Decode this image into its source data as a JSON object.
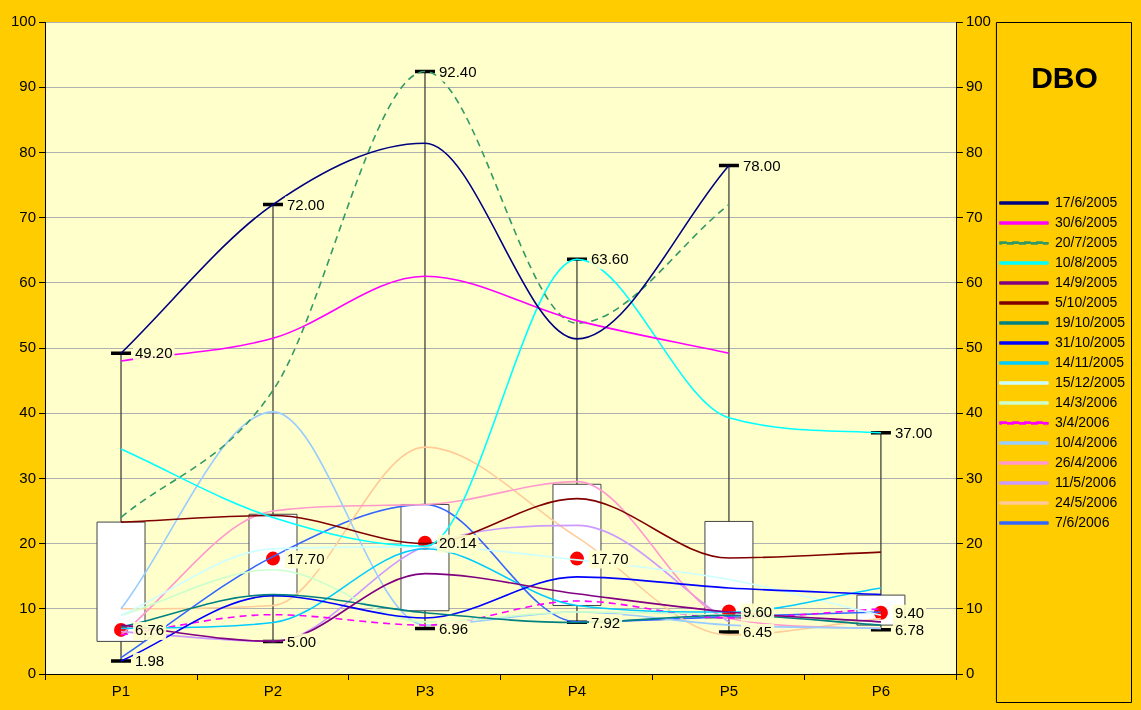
{
  "chart_data": {
    "type": "line",
    "title": "DBO",
    "categories": [
      "P1",
      "P2",
      "P3",
      "P4",
      "P5",
      "P6"
    ],
    "ylim": [
      0,
      100
    ],
    "yticks": [
      0,
      10,
      20,
      30,
      40,
      50,
      60,
      70,
      80,
      90,
      100
    ],
    "y2lim": [
      0,
      100
    ],
    "y2ticks": [
      0,
      10,
      20,
      30,
      40,
      50,
      60,
      70,
      80,
      90,
      100
    ],
    "grid": "y",
    "legend": "right",
    "marker": "none",
    "line_style": "solid",
    "annotations": [
      {
        "text": "49.20",
        "x": "P1",
        "y": 49.2
      },
      {
        "text": "1.98",
        "x": "P1",
        "y": 1.98
      },
      {
        "text": "6.76",
        "x": "P1",
        "y": 6.76
      },
      {
        "text": "72.00",
        "x": "P2",
        "y": 72
      },
      {
        "text": "5.00",
        "x": "P2",
        "y": 5
      },
      {
        "text": "17.70",
        "x": "P2",
        "y": 17.7
      },
      {
        "text": "92.40",
        "x": "P3",
        "y": 92.4
      },
      {
        "text": "6.96",
        "x": "P3",
        "y": 6.96
      },
      {
        "text": "20.14",
        "x": "P3",
        "y": 20.14
      },
      {
        "text": "63.60",
        "x": "P4",
        "y": 63.6
      },
      {
        "text": "7.92",
        "x": "P4",
        "y": 7.92
      },
      {
        "text": "17.70",
        "x": "P4",
        "y": 17.7
      },
      {
        "text": "78.00",
        "x": "P5",
        "y": 78
      },
      {
        "text": "6.45",
        "x": "P5",
        "y": 6.45
      },
      {
        "text": "9.60",
        "x": "P5",
        "y": 9.6
      },
      {
        "text": "37.00",
        "x": "P6",
        "y": 37
      },
      {
        "text": "6.78",
        "x": "P6",
        "y": 6.78
      },
      {
        "text": "9.40",
        "x": "P6",
        "y": 9.4
      }
    ],
    "series": [
      {
        "type": "box",
        "color": "#ffffff",
        "boxes": [
          {
            "low": 1.98,
            "q1": 5.0,
            "median": 6.76,
            "q3": 23.3,
            "high": 49.2
          },
          {
            "low": 5.0,
            "q1": 12.0,
            "median": 17.7,
            "q3": 24.5,
            "high": 72.0
          },
          {
            "low": 6.96,
            "q1": 9.7,
            "median": 20.14,
            "q3": 26.0,
            "high": 92.4
          },
          {
            "low": 7.92,
            "q1": 10.5,
            "median": 17.7,
            "q3": 29.1,
            "high": 63.6
          },
          {
            "low": 6.45,
            "q1": 8.6,
            "median": 9.6,
            "q3": 23.4,
            "high": 78.0
          },
          {
            "low": 6.78,
            "q1": 7.5,
            "median": 9.4,
            "q3": 12.1,
            "high": 37.0
          }
        ]
      },
      {
        "name": "17/6/2005",
        "color": "#000080",
        "values": [
          49.2,
          72,
          81.4,
          51.4,
          78,
          null
        ]
      },
      {
        "name": "30/6/2005",
        "color": "#ff00ff",
        "values": [
          48,
          51.5,
          61,
          54.2,
          49.2,
          null
        ]
      },
      {
        "name": "20/7/2005",
        "color": "#339966",
        "line_style": "dashed",
        "values": [
          24,
          43.5,
          92.4,
          53.8,
          72,
          null
        ]
      },
      {
        "name": "10/8/2005",
        "color": "#00ffff",
        "values": [
          34.5,
          24,
          19.6,
          63.6,
          39.3,
          37
        ]
      },
      {
        "name": "14/9/2005",
        "color": "#800080",
        "values": [
          7.5,
          5,
          15.4,
          12.3,
          9.5,
          8
        ]
      },
      {
        "name": "5/10/2005",
        "color": "#800000",
        "values": [
          23.3,
          24.3,
          20,
          26.9,
          17.8,
          18.7
        ]
      },
      {
        "name": "19/10/2005",
        "color": "#008080",
        "values": [
          7.2,
          12.2,
          9.4,
          7.9,
          9,
          7.5
        ]
      },
      {
        "name": "31/10/2005",
        "color": "#0000ff",
        "values": [
          2,
          12,
          8.6,
          14.9,
          13.2,
          12.2
        ]
      },
      {
        "name": "14/11/2005",
        "color": "#00ccff",
        "values": [
          7,
          7.9,
          19.2,
          10.5,
          9.5,
          13.2
        ]
      },
      {
        "name": "15/12/2005",
        "color": "#ccffff",
        "values": [
          9,
          19.2,
          19.5,
          17.5,
          14.5,
          9
        ]
      },
      {
        "name": "14/3/2006",
        "color": "#ccffcc",
        "values": [
          9,
          16,
          8,
          9.5,
          9,
          8
        ]
      },
      {
        "name": "3/4/2006",
        "color": "#ff00ff",
        "line_style": "dashed",
        "values": [
          6,
          9.1,
          7.5,
          11.2,
          8.6,
          10
        ]
      },
      {
        "name": "10/4/2006",
        "color": "#99ccff",
        "values": [
          10,
          40.2,
          7.5,
          9.5,
          7.5,
          7
        ]
      },
      {
        "name": "26/4/2006",
        "color": "#ff99cc",
        "values": [
          6,
          25,
          26,
          29.5,
          8.5,
          7
        ]
      },
      {
        "name": "11/5/2006",
        "color": "#cc99ff",
        "values": [
          6.5,
          5,
          19.6,
          22.8,
          8,
          null
        ]
      },
      {
        "name": "24/5/2006",
        "color": "#ffcc99",
        "values": [
          10,
          10.5,
          34.8,
          21,
          6,
          8.5
        ]
      },
      {
        "name": "7/6/2006",
        "color": "#3366ff",
        "values": [
          2.5,
          18,
          26,
          8,
          8.8,
          9.5
        ]
      }
    ]
  }
}
